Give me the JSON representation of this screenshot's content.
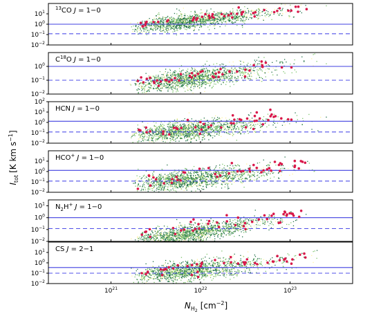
{
  "chart_data": {
    "type": "scatter",
    "xlabel": "N",
    "xlabel_sub": "H",
    "xlabel_sub2": "2",
    "xlabel_unit": "[cm",
    "xlabel_unit_exp": "−2",
    "xlabel_close": "]",
    "ylabel": "I",
    "ylabel_sub": "tot",
    "ylabel_unit": "[K km s",
    "ylabel_unit_exp": "−1",
    "ylabel_close": "]",
    "x_log": true,
    "xlim": [
      2e+20,
      5e+23
    ],
    "x_ticks": [
      {
        "value": 1e+21,
        "base": "10",
        "exp": "21"
      },
      {
        "value": 1e+22,
        "base": "10",
        "exp": "22"
      },
      {
        "value": 1e+23,
        "base": "10",
        "exp": "23"
      }
    ],
    "colors": {
      "solid_line": "#3f3fe0",
      "dashed_line": "#4f4fe8",
      "marker": "#d8194a",
      "density_high": "#fff2a0",
      "density_mid": "#7cc46a",
      "density_low": "#1f6e46"
    },
    "panels": [
      {
        "label_pre": "",
        "label_sup": "13",
        "label_main": "CO ",
        "label_j": "J",
        "label_trans": " = 1−0",
        "ylim_exp": [
          -2,
          2
        ],
        "yticks": [
          {
            "exp": "1",
            "v": 10
          },
          {
            "exp": "0",
            "v": 1
          },
          {
            "exp": "−1",
            "v": 0.1
          },
          {
            "exp": "−2",
            "v": 0.01
          }
        ],
        "solid": 1.0,
        "dashed": 0.12
      },
      {
        "label_pre": "C",
        "label_sup": "18",
        "label_main": "O ",
        "label_j": "J",
        "label_trans": " = 1−0",
        "ylim_exp": [
          -2,
          1
        ],
        "yticks": [
          {
            "exp": "0",
            "v": 1
          },
          {
            "exp": "−1",
            "v": 0.1
          },
          {
            "exp": "−2",
            "v": 0.01
          }
        ],
        "solid": 1.0,
        "dashed": 0.1
      },
      {
        "label_pre": "",
        "label_sup": "",
        "label_main": "HCN ",
        "label_j": "J",
        "label_trans": " = 1−0",
        "ylim_exp": [
          -2,
          2
        ],
        "yticks": [
          {
            "exp": "2",
            "v": 100
          },
          {
            "exp": "1",
            "v": 10
          },
          {
            "exp": "0",
            "v": 1
          },
          {
            "exp": "−1",
            "v": 0.1
          },
          {
            "exp": "−2",
            "v": 0.01
          }
        ],
        "solid": 1.3,
        "dashed": 0.12
      },
      {
        "label_pre": "",
        "label_sup": "+",
        "label_main": "HCO",
        "label_j": " J",
        "label_trans": " = 1−0",
        "ylim_exp": [
          -2,
          2
        ],
        "yticks": [
          {
            "exp": "1",
            "v": 10
          },
          {
            "exp": "0",
            "v": 1
          },
          {
            "exp": "−1",
            "v": 0.1
          },
          {
            "exp": "−2",
            "v": 0.01
          }
        ],
        "solid": 1.3,
        "dashed": 0.12
      },
      {
        "label_pre": "N",
        "label_sup": "+",
        "label_main": "2H",
        "label_j": " J",
        "label_trans": " = 1−0",
        "ylim_exp": [
          -2,
          1.5
        ],
        "yticks": [
          {
            "exp": "1",
            "v": 10
          },
          {
            "exp": "0",
            "v": 1
          },
          {
            "exp": "−1",
            "v": 0.1
          },
          {
            "exp": "−2",
            "v": 0.01
          }
        ],
        "solid": 1.0,
        "dashed": 0.12
      },
      {
        "label_pre": "",
        "label_sup": "",
        "label_main": "CS ",
        "label_j": "J",
        "label_trans": " = 2−1",
        "ylim_exp": [
          -2,
          2
        ],
        "yticks": [
          {
            "exp": "1",
            "v": 10
          },
          {
            "exp": "0",
            "v": 1
          },
          {
            "exp": "−1",
            "v": 0.1
          },
          {
            "exp": "−2",
            "v": 0.01
          }
        ],
        "solid": 0.35,
        "dashed": 0.1
      }
    ]
  }
}
